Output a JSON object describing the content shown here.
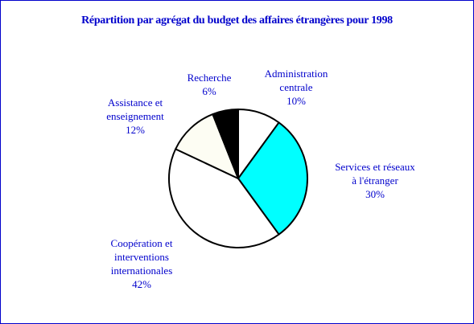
{
  "chart_data": {
    "type": "pie",
    "title": "Répartition par agrégat du budget des affaires étrangères pour 1998",
    "slices": [
      {
        "name": "Administration centrale",
        "lines": [
          "Administration",
          "centrale"
        ],
        "value": 10,
        "label": "10%",
        "color": "#ffffff"
      },
      {
        "name": "Services et réseaux à l'étranger",
        "lines": [
          "Services et réseaux",
          "à l'étranger"
        ],
        "value": 30,
        "label": "30%",
        "color": "#00ffff"
      },
      {
        "name": "Coopération et interventions internationales",
        "lines": [
          "Coopération et",
          "interventions",
          "internationales"
        ],
        "value": 42,
        "label": "42%",
        "color": "#ffffff"
      },
      {
        "name": "Assistance et enseignement",
        "lines": [
          "Assistance et",
          "enseignement"
        ],
        "value": 12,
        "label": "12%",
        "color": "#fdfdf3"
      },
      {
        "name": "Recherche",
        "lines": [
          "Recherche"
        ],
        "value": 6,
        "label": "6%",
        "color": "#000000"
      }
    ],
    "start_angle_deg": 0,
    "direction": "clockwise",
    "legend": "none",
    "label_color": "#0000cc",
    "title_color": "#0000cc",
    "border_color": "#0000cc"
  }
}
